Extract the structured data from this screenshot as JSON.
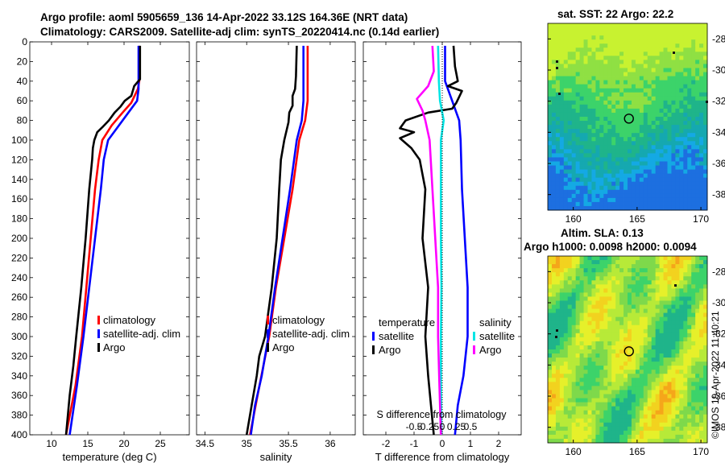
{
  "titles": {
    "line1": "Argo profile: aoml 5905659_136 14-Apr-2022 33.12S 164.36E (NRT data)",
    "line2": "Climatology: CARS2009. Satellite-adj clim: synTS_20220414.nc (0.14d earlier)",
    "sst": "sat. SST: 22 Argo: 22.2",
    "sla1": "Altim. SLA: 0.13",
    "sla2": "Argo h1000: 0.0098 h2000: 0.0094"
  },
  "copyright": "©IMOS 19-Apr-2022 11:40:21",
  "colors": {
    "clim": "#ff0000",
    "sat": "#0000ff",
    "argo": "#000000",
    "satS": "#00e5e5",
    "argoS": "#ff00ff",
    "dot": "#3f3fff"
  },
  "chart_data": [
    {
      "type": "line",
      "name": "temperature",
      "xlabel": "temperature (deg C)",
      "xlim": [
        7,
        29
      ],
      "xticks": [
        "10",
        "15",
        "20",
        "25"
      ],
      "ylim": [
        0,
        400
      ],
      "yticks": [
        "0",
        "20",
        "40",
        "60",
        "80",
        "100",
        "120",
        "140",
        "160",
        "180",
        "200",
        "220",
        "240",
        "260",
        "280",
        "300",
        "320",
        "340",
        "360",
        "380",
        "400"
      ],
      "legend": [
        "climatology",
        "satellite-adj. clim",
        "Argo"
      ],
      "series": [
        {
          "name": "climatology",
          "color": "#ff0000",
          "points": [
            [
              22.1,
              4
            ],
            [
              22.1,
              40
            ],
            [
              21.9,
              48
            ],
            [
              21.0,
              62
            ],
            [
              19.8,
              72
            ],
            [
              18.3,
              85
            ],
            [
              17.0,
              100
            ],
            [
              16.5,
              120
            ],
            [
              16.0,
              150
            ],
            [
              15.4,
              200
            ],
            [
              14.8,
              250
            ],
            [
              14.2,
              300
            ],
            [
              13.3,
              350
            ],
            [
              12.0,
              400
            ]
          ]
        },
        {
          "name": "satellite-adj. clim",
          "color": "#0000ff",
          "points": [
            [
              22.0,
              4
            ],
            [
              22.0,
              40
            ],
            [
              22.0,
              48
            ],
            [
              21.8,
              60
            ],
            [
              20.6,
              72
            ],
            [
              19.0,
              88
            ],
            [
              17.8,
              100
            ],
            [
              17.2,
              120
            ],
            [
              16.8,
              150
            ],
            [
              16.0,
              200
            ],
            [
              15.2,
              250
            ],
            [
              14.4,
              300
            ],
            [
              13.5,
              350
            ],
            [
              12.5,
              400
            ]
          ]
        },
        {
          "name": "Argo",
          "color": "#000000",
          "points": [
            [
              22.2,
              4
            ],
            [
              22.2,
              38
            ],
            [
              21.4,
              45
            ],
            [
              21.0,
              55
            ],
            [
              20.1,
              60
            ],
            [
              19.5,
              66
            ],
            [
              18.7,
              72
            ],
            [
              17.9,
              80
            ],
            [
              17.0,
              87
            ],
            [
              16.3,
              92
            ],
            [
              15.9,
              100
            ],
            [
              15.7,
              108
            ],
            [
              15.6,
              120
            ],
            [
              15.2,
              150
            ],
            [
              14.7,
              200
            ],
            [
              14.1,
              250
            ],
            [
              13.4,
              300
            ],
            [
              13.0,
              330
            ],
            [
              12.5,
              360
            ],
            [
              12.0,
              400
            ]
          ]
        }
      ]
    },
    {
      "type": "line",
      "name": "salinity",
      "xlabel": "salinity",
      "xlim": [
        34.4,
        36.3
      ],
      "xticks": [
        "34.5",
        "35",
        "35.5",
        "36"
      ],
      "ylim": [
        0,
        400
      ],
      "legend": [
        "climatology",
        "satellite-adj. clim",
        "Argo"
      ],
      "series": [
        {
          "name": "climatology",
          "color": "#ff0000",
          "points": [
            [
              35.73,
              4
            ],
            [
              35.73,
              40
            ],
            [
              35.73,
              60
            ],
            [
              35.7,
              80
            ],
            [
              35.63,
              100
            ],
            [
              35.55,
              150
            ],
            [
              35.45,
              200
            ],
            [
              35.35,
              250
            ],
            [
              35.27,
              300
            ],
            [
              35.2,
              330
            ],
            [
              35.13,
              360
            ],
            [
              35.04,
              400
            ]
          ]
        },
        {
          "name": "satellite-adj. clim",
          "color": "#0000ff",
          "points": [
            [
              35.68,
              4
            ],
            [
              35.68,
              40
            ],
            [
              35.68,
              60
            ],
            [
              35.66,
              80
            ],
            [
              35.6,
              100
            ],
            [
              35.52,
              150
            ],
            [
              35.43,
              200
            ],
            [
              35.34,
              250
            ],
            [
              35.26,
              300
            ],
            [
              35.18,
              340
            ],
            [
              35.1,
              370
            ],
            [
              35.05,
              400
            ]
          ]
        },
        {
          "name": "Argo",
          "color": "#000000",
          "points": [
            [
              35.6,
              4
            ],
            [
              35.59,
              35
            ],
            [
              35.58,
              48
            ],
            [
              35.55,
              55
            ],
            [
              35.55,
              65
            ],
            [
              35.51,
              72
            ],
            [
              35.5,
              82
            ],
            [
              35.45,
              100
            ],
            [
              35.41,
              120
            ],
            [
              35.39,
              150
            ],
            [
              35.36,
              200
            ],
            [
              35.3,
              250
            ],
            [
              35.22,
              300
            ],
            [
              35.15,
              320
            ],
            [
              35.12,
              340
            ],
            [
              35.06,
              370
            ],
            [
              35.0,
              400
            ]
          ]
        }
      ]
    },
    {
      "type": "line",
      "name": "difference from climatology",
      "xlabel": "T difference from climatology",
      "x2label": "S difference from climatology",
      "xlim": [
        -2.8,
        2.8
      ],
      "xticks": [
        "-2",
        "-1",
        "0",
        "1",
        "2"
      ],
      "x2ticks": [
        "-0.5",
        "-0.25",
        "0",
        "0.25",
        "0.5"
      ],
      "ylim": [
        0,
        400
      ],
      "legend_left": {
        "title": "temperature",
        "items": [
          "satellite",
          "Argo"
        ]
      },
      "legend_right": {
        "title": "salinity",
        "items": [
          "satellite",
          "Argo"
        ]
      },
      "series": [
        {
          "name": "temperature satellite",
          "color": "#0000ff",
          "points": [
            [
              0.1,
              4
            ],
            [
              0.1,
              40
            ],
            [
              0.35,
              60
            ],
            [
              0.6,
              80
            ],
            [
              0.65,
              100
            ],
            [
              0.7,
              150
            ],
            [
              0.8,
              200
            ],
            [
              0.9,
              250
            ],
            [
              0.9,
              300
            ],
            [
              0.75,
              340
            ],
            [
              0.55,
              370
            ],
            [
              0.45,
              400
            ]
          ]
        },
        {
          "name": "temperature Argo",
          "color": "#000000",
          "points": [
            [
              0.4,
              4
            ],
            [
              0.45,
              25
            ],
            [
              0.55,
              40
            ],
            [
              0.2,
              45
            ],
            [
              0.7,
              50
            ],
            [
              0.5,
              62
            ],
            [
              0.35,
              68
            ],
            [
              -0.5,
              72
            ],
            [
              -1.3,
              80
            ],
            [
              -1.5,
              88
            ],
            [
              -1.0,
              92
            ],
            [
              -1.5,
              98
            ],
            [
              -1.1,
              108
            ],
            [
              -0.8,
              120
            ],
            [
              -0.6,
              150
            ],
            [
              -0.7,
              200
            ],
            [
              -0.5,
              250
            ],
            [
              -0.6,
              300
            ],
            [
              -0.5,
              340
            ],
            [
              -0.4,
              370
            ],
            [
              -0.3,
              400
            ]
          ]
        },
        {
          "name": "salinity satellite",
          "color": "#00e5e5",
          "points": [
            [
              -0.15,
              4
            ],
            [
              -0.12,
              40
            ],
            [
              -0.08,
              60
            ],
            [
              0.05,
              80
            ],
            [
              -0.05,
              100
            ],
            [
              -0.05,
              150
            ],
            [
              -0.05,
              200
            ],
            [
              -0.03,
              250
            ],
            [
              -0.05,
              300
            ],
            [
              -0.05,
              350
            ],
            [
              -0.03,
              400
            ]
          ]
        },
        {
          "name": "salinity Argo",
          "color": "#ff00ff",
          "points": [
            [
              -0.35,
              4
            ],
            [
              -0.3,
              30
            ],
            [
              -0.5,
              45
            ],
            [
              -0.9,
              58
            ],
            [
              -0.7,
              70
            ],
            [
              -0.6,
              80
            ],
            [
              -0.45,
              100
            ],
            [
              -0.35,
              150
            ],
            [
              -0.25,
              200
            ],
            [
              -0.15,
              250
            ],
            [
              -0.15,
              300
            ],
            [
              -0.1,
              350
            ],
            [
              -0.05,
              400
            ]
          ]
        }
      ]
    },
    {
      "type": "heatmap",
      "name": "SST map",
      "xlim": [
        158,
        170.5
      ],
      "ylim": [
        -39,
        -27
      ],
      "xticks": [
        "160",
        "165",
        "170"
      ],
      "yticks": [
        "-28",
        "-30",
        "-32",
        "-34",
        "-36",
        "-38"
      ],
      "marker": [
        164.36,
        -33.12
      ]
    },
    {
      "type": "heatmap",
      "name": "SLA map",
      "xlim": [
        158,
        170.5
      ],
      "ylim": [
        -39,
        -27
      ],
      "xticks": [
        "160",
        "165",
        "170"
      ],
      "yticks": [
        "-28",
        "-30",
        "-32",
        "-34",
        "-36",
        "-38"
      ],
      "marker": [
        164.36,
        -33.12
      ]
    }
  ]
}
